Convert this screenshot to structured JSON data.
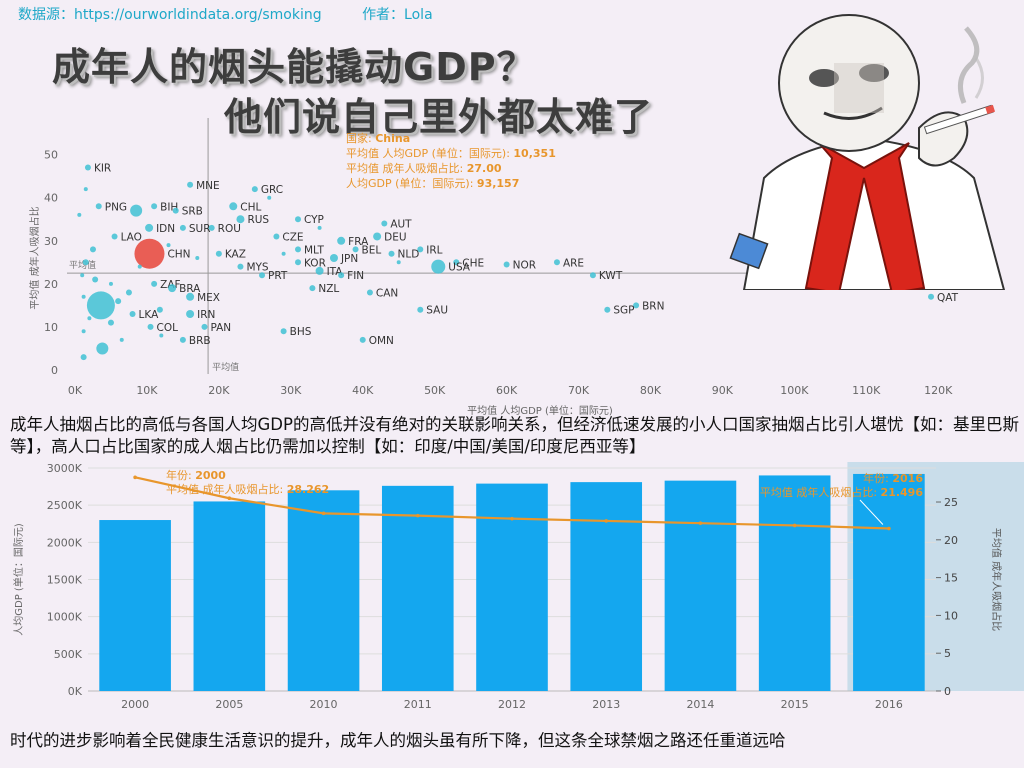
{
  "header": {
    "source": "数据源：https://ourworldindata.org/smoking",
    "author": "作者：Lola"
  },
  "titles": {
    "line1": "成年人的烟头能撬动GDP？",
    "line2": "他们说自己里外都太难了"
  },
  "captions": {
    "middle": "成年人抽烟占比的高低与各国人均GDP的高低并没有绝对的关联影响关系，但经济低速发展的小人口国家抽烟占比引人堪忧【如：基里巴斯等】，高人口占比国家的成人烟占比仍需加以控制【如：印度/中国/美国/印度尼西亚等】",
    "bottom": "时代的进步影响着全民健康生活意识的提升，成年人的烟头虽有所下降，但这条全球禁烟之路还任重道远哈"
  },
  "chart_data": [
    {
      "type": "scatter",
      "xlabel": "平均值 人均GDP (单位：国际元)",
      "ylabel": "平均值 成年人吸烟占比",
      "x_ticks": [
        "0K",
        "10K",
        "20K",
        "30K",
        "40K",
        "50K",
        "60K",
        "70K",
        "80K",
        "90K",
        "100K",
        "110K",
        "120K"
      ],
      "y_ticks": [
        "0",
        "10",
        "20",
        "30",
        "40",
        "50"
      ],
      "xlim": [
        0,
        124000
      ],
      "ylim": [
        0,
        52
      ],
      "ref_lines": {
        "x_label": "平均值",
        "y_label": "平均值",
        "x": 18500,
        "y": 22.5
      },
      "colors": {
        "point": "#3fc1d4",
        "highlight": "#e8554c",
        "ref": "#999999",
        "tooltip": "#e8962c"
      },
      "tooltip": {
        "lines": [
          [
            "国家: ",
            "China"
          ],
          [
            "平均值 人均GDP (单位：国际元): ",
            "10,351"
          ],
          [
            "平均值 成年人吸烟占比: ",
            "27.00"
          ],
          [
            "人均GDP (单位：国际元): ",
            "93,157"
          ]
        ]
      },
      "points": [
        {
          "label": "KIR",
          "x": 1800,
          "y": 47,
          "size": 3
        },
        {
          "label": "MNE",
          "x": 16000,
          "y": 43,
          "size": 3
        },
        {
          "label": "GRC",
          "x": 25000,
          "y": 42,
          "size": 3
        },
        {
          "label": "PNG",
          "x": 3300,
          "y": 38,
          "size": 3
        },
        {
          "label": "BIH",
          "x": 11000,
          "y": 38,
          "size": 3
        },
        {
          "label": "CHL",
          "x": 22000,
          "y": 38,
          "size": 4
        },
        {
          "label": "SRB",
          "x": 14000,
          "y": 37,
          "size": 3
        },
        {
          "label": "RUS",
          "x": 23000,
          "y": 35,
          "size": 4
        },
        {
          "label": "",
          "x": 8500,
          "y": 37,
          "size": 6
        },
        {
          "label": "SUR",
          "x": 15000,
          "y": 33,
          "size": 3
        },
        {
          "label": "ROU",
          "x": 19000,
          "y": 33,
          "size": 3
        },
        {
          "label": "IDN",
          "x": 10300,
          "y": 33,
          "size": 4
        },
        {
          "label": "CYP",
          "x": 31000,
          "y": 35,
          "size": 3
        },
        {
          "label": "AUT",
          "x": 43000,
          "y": 34,
          "size": 3
        },
        {
          "label": "LAO",
          "x": 5500,
          "y": 31,
          "size": 3
        },
        {
          "label": "CZE",
          "x": 28000,
          "y": 31,
          "size": 3
        },
        {
          "label": "DEU",
          "x": 42000,
          "y": 31,
          "size": 4
        },
        {
          "label": "FRA",
          "x": 37000,
          "y": 30,
          "size": 4
        },
        {
          "label": "MLT",
          "x": 31000,
          "y": 28,
          "size": 3
        },
        {
          "label": "BEL",
          "x": 39000,
          "y": 28,
          "size": 3
        },
        {
          "label": "IRL",
          "x": 48000,
          "y": 28,
          "size": 3
        },
        {
          "label": "CHN",
          "x": 10351,
          "y": 27,
          "size": 15
        },
        {
          "label": "KAZ",
          "x": 20000,
          "y": 27,
          "size": 3
        },
        {
          "label": "NLD",
          "x": 44000,
          "y": 27,
          "size": 3
        },
        {
          "label": "JPN",
          "x": 36000,
          "y": 26,
          "size": 4
        },
        {
          "label": "KOR",
          "x": 31000,
          "y": 25,
          "size": 3
        },
        {
          "label": "CHE",
          "x": 53000,
          "y": 25,
          "size": 3
        },
        {
          "label": "NOR",
          "x": 60000,
          "y": 24.5,
          "size": 3
        },
        {
          "label": "ARE",
          "x": 67000,
          "y": 25,
          "size": 3
        },
        {
          "label": "MYS",
          "x": 23000,
          "y": 24,
          "size": 3
        },
        {
          "label": "USA",
          "x": 50500,
          "y": 24,
          "size": 7
        },
        {
          "label": "ITA",
          "x": 34000,
          "y": 23,
          "size": 4
        },
        {
          "label": "PRT",
          "x": 26000,
          "y": 22,
          "size": 3
        },
        {
          "label": "FIN",
          "x": 37000,
          "y": 22,
          "size": 3
        },
        {
          "label": "KWT",
          "x": 72000,
          "y": 22,
          "size": 3
        },
        {
          "label": "ZAF",
          "x": 11000,
          "y": 20,
          "size": 3
        },
        {
          "label": "BRA",
          "x": 13500,
          "y": 19,
          "size": 4
        },
        {
          "label": "NZL",
          "x": 33000,
          "y": 19,
          "size": 3
        },
        {
          "label": "CAN",
          "x": 41000,
          "y": 18,
          "size": 3
        },
        {
          "label": "MEX",
          "x": 16000,
          "y": 17,
          "size": 4
        },
        {
          "label": "QAT",
          "x": 119000,
          "y": 17,
          "size": 3
        },
        {
          "label": "BRN",
          "x": 78000,
          "y": 15,
          "size": 3
        },
        {
          "label": "SGP",
          "x": 74000,
          "y": 14,
          "size": 3
        },
        {
          "label": "",
          "x": 3600,
          "y": 15,
          "size": 14
        },
        {
          "label": "IRN",
          "x": 16000,
          "y": 13,
          "size": 4
        },
        {
          "label": "SAU",
          "x": 48000,
          "y": 14,
          "size": 3
        },
        {
          "label": "LKA",
          "x": 8000,
          "y": 13,
          "size": 3
        },
        {
          "label": "PAN",
          "x": 18000,
          "y": 10,
          "size": 3
        },
        {
          "label": "COL",
          "x": 10500,
          "y": 10,
          "size": 3
        },
        {
          "label": "BHS",
          "x": 29000,
          "y": 9,
          "size": 3
        },
        {
          "label": "OMN",
          "x": 40000,
          "y": 7,
          "size": 3
        },
        {
          "label": "BRB",
          "x": 15000,
          "y": 7,
          "size": 3
        },
        {
          "label": "",
          "x": 3800,
          "y": 5,
          "size": 6
        },
        {
          "label": "",
          "x": 1500,
          "y": 42,
          "size": 2
        },
        {
          "label": "",
          "x": 600,
          "y": 36,
          "size": 2
        },
        {
          "label": "",
          "x": 2500,
          "y": 28,
          "size": 3
        },
        {
          "label": "",
          "x": 1500,
          "y": 25,
          "size": 3
        },
        {
          "label": "",
          "x": 1000,
          "y": 22,
          "size": 2
        },
        {
          "label": "",
          "x": 2800,
          "y": 21,
          "size": 3
        },
        {
          "label": "",
          "x": 5000,
          "y": 20,
          "size": 2
        },
        {
          "label": "",
          "x": 7500,
          "y": 18,
          "size": 3
        },
        {
          "label": "",
          "x": 1200,
          "y": 17,
          "size": 2
        },
        {
          "label": "",
          "x": 6000,
          "y": 16,
          "size": 3
        },
        {
          "label": "",
          "x": 11800,
          "y": 14,
          "size": 3
        },
        {
          "label": "",
          "x": 2000,
          "y": 12,
          "size": 2
        },
        {
          "label": "",
          "x": 5000,
          "y": 11,
          "size": 3
        },
        {
          "label": "",
          "x": 1200,
          "y": 9,
          "size": 2
        },
        {
          "label": "",
          "x": 6500,
          "y": 7,
          "size": 2
        },
        {
          "label": "",
          "x": 1200,
          "y": 3,
          "size": 3
        },
        {
          "label": "",
          "x": 12000,
          "y": 8,
          "size": 2
        },
        {
          "label": "",
          "x": 9000,
          "y": 24,
          "size": 2
        },
        {
          "label": "",
          "x": 17000,
          "y": 26,
          "size": 2
        },
        {
          "label": "",
          "x": 13000,
          "y": 29,
          "size": 2
        },
        {
          "label": "",
          "x": 27000,
          "y": 40,
          "size": 2
        },
        {
          "label": "",
          "x": 34000,
          "y": 33,
          "size": 2
        },
        {
          "label": "",
          "x": 29000,
          "y": 27,
          "size": 2
        },
        {
          "label": "",
          "x": 45000,
          "y": 25,
          "size": 2
        }
      ]
    },
    {
      "type": "bar",
      "categories": [
        "2000",
        "2005",
        "2010",
        "2011",
        "2012",
        "2013",
        "2014",
        "2015",
        "2016"
      ],
      "ylabel": "人均GDP (单位：国际元)",
      "y2label": "平均值 成年人吸烟占比",
      "y_ticks": [
        "0K",
        "500K",
        "1000K",
        "1500K",
        "2000K",
        "2500K",
        "3000K"
      ],
      "y2_ticks": [
        "0",
        "5",
        "10",
        "15",
        "20",
        "25"
      ],
      "ylim": [
        0,
        3000000
      ],
      "y2lim": [
        0,
        29.5
      ],
      "colors": {
        "bar": "#14a7ef",
        "line": "#e8962c",
        "highlight_band": "#a6cfe0"
      },
      "series": [
        {
          "type": "bar",
          "values": [
            2300000,
            2550000,
            2700000,
            2760000,
            2790000,
            2810000,
            2830000,
            2900000,
            2920000
          ]
        },
        {
          "type": "line",
          "values": [
            28.262,
            25.5,
            23.5,
            23.2,
            22.8,
            22.5,
            22.2,
            21.9,
            21.496
          ]
        }
      ],
      "annotations": [
        {
          "lines": [
            [
              "年份: ",
              "2000"
            ],
            [
              "平均值 成年人吸烟占比: ",
              "28.262"
            ]
          ]
        },
        {
          "lines": [
            [
              "年份: ",
              "2016"
            ],
            [
              "平均值 成年人吸烟占比: ",
              "21.496"
            ]
          ]
        }
      ]
    }
  ]
}
